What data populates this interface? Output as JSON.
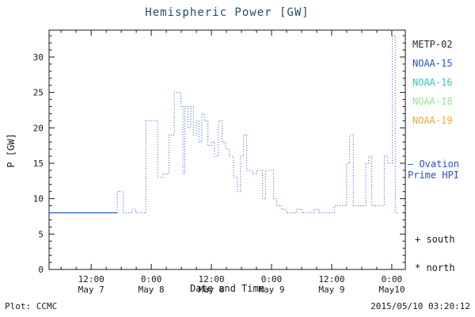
{
  "chart": {
    "title": "Hemispheric Power [GW]",
    "xlabel": "Date and Time",
    "ylabel": "P [GW]",
    "footer_left": "Plot: CCMC",
    "footer_right": "2015/05/10 03:20:12",
    "legend": [
      {
        "label": "METP-02",
        "color": "#282828"
      },
      {
        "label": "NOAA-15",
        "color": "#2850c8"
      },
      {
        "label": "NOAA-16",
        "color": "#30c8c8"
      },
      {
        "label": "NOAA-18",
        "color": "#90e890"
      },
      {
        "label": "NOAA-19",
        "color": "#f0a830"
      }
    ],
    "annotation": {
      "line1": "— Ovation",
      "line2": "Prime HPI",
      "color": "#2850c8"
    },
    "markers": [
      {
        "symbol": "+",
        "label": "south"
      },
      {
        "symbol": "*",
        "label": "north"
      }
    ],
    "colors": {
      "axis": "#1a1a1a",
      "title": "#1f4e6e"
    }
  },
  "chart_data": {
    "type": "line",
    "style": "dotted-step",
    "title": "Hemispheric Power [GW]",
    "xlabel": "Date and Time",
    "ylabel": "P [GW]",
    "line_color": "#2850c8",
    "ylim": [
      0,
      33.8
    ],
    "yticks": [
      0,
      5,
      10,
      15,
      20,
      25,
      30
    ],
    "x_unit": "hours since 2015-05-07 00:00",
    "xlim_hours": [
      3.6,
      74.7
    ],
    "xticks": [
      {
        "t": 12,
        "time": "12:00",
        "date": "May 7"
      },
      {
        "t": 24,
        "time": "0:00",
        "date": "May 8"
      },
      {
        "t": 36,
        "time": "12:00",
        "date": "May 8"
      },
      {
        "t": 48,
        "time": "0:00",
        "date": "May 9"
      },
      {
        "t": 60,
        "time": "12:00",
        "date": "May 9"
      },
      {
        "t": 72,
        "time": "0:00",
        "date": "May10"
      }
    ],
    "grid": false,
    "legend_position": "right-outside",
    "points": [
      [
        3.6,
        8
      ],
      [
        17.2,
        8
      ],
      [
        17.2,
        11
      ],
      [
        18.4,
        11
      ],
      [
        18.4,
        8
      ],
      [
        20.2,
        8
      ],
      [
        20.2,
        8.5
      ],
      [
        20.9,
        8.5
      ],
      [
        20.9,
        8
      ],
      [
        22.9,
        8
      ],
      [
        22.9,
        21
      ],
      [
        25.3,
        21
      ],
      [
        25.3,
        13
      ],
      [
        26.3,
        13
      ],
      [
        26.3,
        13.5
      ],
      [
        27.5,
        13.5
      ],
      [
        27.5,
        19
      ],
      [
        28.6,
        19
      ],
      [
        28.6,
        25
      ],
      [
        29.9,
        25
      ],
      [
        29.9,
        23
      ],
      [
        30.3,
        23
      ],
      [
        30.3,
        13.5
      ],
      [
        30.7,
        13.5
      ],
      [
        30.7,
        23
      ],
      [
        31.3,
        23
      ],
      [
        31.3,
        20
      ],
      [
        31.9,
        20
      ],
      [
        31.9,
        23
      ],
      [
        32.4,
        23
      ],
      [
        32.4,
        19
      ],
      [
        33.0,
        19
      ],
      [
        33.0,
        21
      ],
      [
        33.5,
        21
      ],
      [
        33.5,
        18
      ],
      [
        34.1,
        18
      ],
      [
        34.1,
        22
      ],
      [
        34.6,
        22
      ],
      [
        34.6,
        21
      ],
      [
        35.3,
        21
      ],
      [
        35.3,
        17.5
      ],
      [
        36.0,
        17.5
      ],
      [
        36.0,
        18
      ],
      [
        36.6,
        18
      ],
      [
        36.6,
        16
      ],
      [
        37.4,
        16
      ],
      [
        37.4,
        21
      ],
      [
        38.1,
        21
      ],
      [
        38.1,
        18
      ],
      [
        38.8,
        18
      ],
      [
        38.8,
        17
      ],
      [
        39.6,
        17
      ],
      [
        39.6,
        16
      ],
      [
        40.4,
        16
      ],
      [
        40.4,
        13
      ],
      [
        41.2,
        13
      ],
      [
        41.2,
        11
      ],
      [
        41.8,
        11
      ],
      [
        41.8,
        16
      ],
      [
        42.4,
        16
      ],
      [
        42.4,
        19
      ],
      [
        43.0,
        19
      ],
      [
        43.0,
        14
      ],
      [
        44.2,
        14
      ],
      [
        44.2,
        13.5
      ],
      [
        45.0,
        13.5
      ],
      [
        45.0,
        14
      ],
      [
        46.2,
        14
      ],
      [
        46.2,
        10
      ],
      [
        46.8,
        10
      ],
      [
        46.8,
        14
      ],
      [
        48.4,
        14
      ],
      [
        48.4,
        10
      ],
      [
        49.0,
        10
      ],
      [
        49.0,
        9
      ],
      [
        50.0,
        9
      ],
      [
        50.0,
        8.5
      ],
      [
        51.0,
        8.5
      ],
      [
        51.0,
        8
      ],
      [
        53.0,
        8
      ],
      [
        53.0,
        8.5
      ],
      [
        54.0,
        8.5
      ],
      [
        54.0,
        8
      ],
      [
        56.5,
        8
      ],
      [
        56.5,
        8.5
      ],
      [
        57.5,
        8.5
      ],
      [
        57.5,
        8
      ],
      [
        60.5,
        8
      ],
      [
        60.5,
        9
      ],
      [
        63.0,
        9
      ],
      [
        63.0,
        15
      ],
      [
        63.6,
        15
      ],
      [
        63.6,
        19
      ],
      [
        64.3,
        19
      ],
      [
        64.3,
        9
      ],
      [
        66.8,
        9
      ],
      [
        66.8,
        15
      ],
      [
        67.4,
        15
      ],
      [
        67.4,
        16
      ],
      [
        68.0,
        16
      ],
      [
        68.0,
        9
      ],
      [
        70.5,
        9
      ],
      [
        70.5,
        16
      ],
      [
        71.2,
        16
      ],
      [
        71.2,
        15
      ],
      [
        72.1,
        15
      ],
      [
        72.1,
        33
      ],
      [
        72.7,
        33
      ],
      [
        72.7,
        8
      ],
      [
        73.5,
        8
      ]
    ]
  }
}
